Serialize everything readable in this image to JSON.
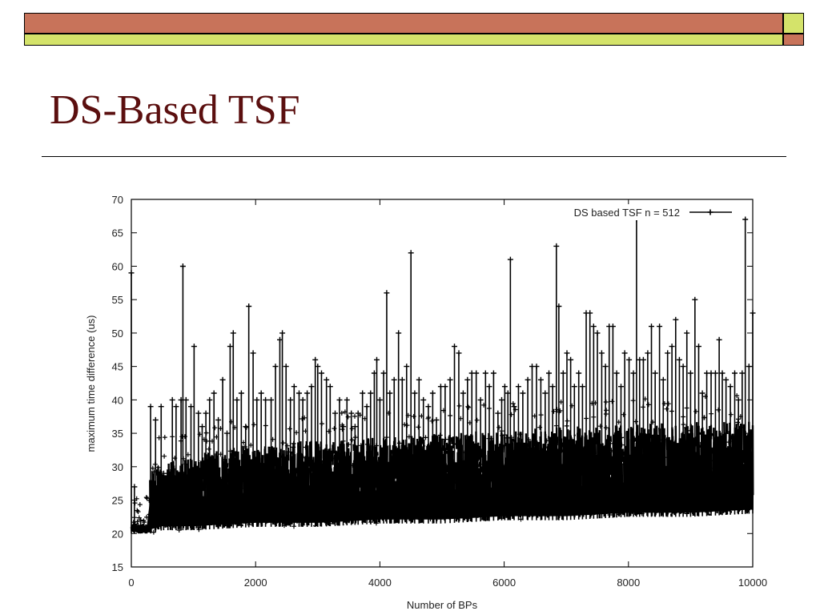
{
  "slide": {
    "title": "DS-Based TSF",
    "colors": {
      "bar_orange": "#c8735a",
      "bar_green": "#d4e36a",
      "title": "#5b0f0f"
    }
  },
  "chart_data": {
    "type": "line",
    "title": "",
    "xlabel": "Number of BPs",
    "ylabel": "maximum time difference (us)",
    "xlim": [
      0,
      10000
    ],
    "ylim": [
      15,
      70
    ],
    "xticks": [
      0,
      2000,
      4000,
      6000,
      8000,
      10000
    ],
    "yticks": [
      15,
      20,
      25,
      30,
      35,
      40,
      45,
      50,
      55,
      60,
      65,
      70
    ],
    "grid": false,
    "legend_position": "top-right",
    "series": [
      {
        "name": "DS based TSF n = 512",
        "color": "#000000",
        "marker": "plus",
        "baseline": [
          [
            0,
            20
          ],
          [
            300,
            20
          ],
          [
            500,
            20.5
          ],
          [
            1000,
            20.5
          ],
          [
            2000,
            21
          ],
          [
            3000,
            21
          ],
          [
            4000,
            21.5
          ],
          [
            5000,
            21.5
          ],
          [
            6000,
            22
          ],
          [
            7000,
            22
          ],
          [
            8000,
            22.5
          ],
          [
            9000,
            22.5
          ],
          [
            10000,
            23
          ]
        ],
        "peaks": [
          [
            0,
            59
          ],
          [
            50,
            27
          ],
          [
            150,
            22
          ],
          [
            310,
            39
          ],
          [
            390,
            37
          ],
          [
            480,
            39
          ],
          [
            520,
            29
          ],
          [
            590,
            29
          ],
          [
            660,
            40
          ],
          [
            720,
            39
          ],
          [
            800,
            40
          ],
          [
            830,
            60
          ],
          [
            880,
            40
          ],
          [
            960,
            39
          ],
          [
            1010,
            48
          ],
          [
            1080,
            38
          ],
          [
            1140,
            36
          ],
          [
            1200,
            38
          ],
          [
            1260,
            40
          ],
          [
            1330,
            41
          ],
          [
            1400,
            37
          ],
          [
            1470,
            43
          ],
          [
            1540,
            35
          ],
          [
            1590,
            48
          ],
          [
            1640,
            50
          ],
          [
            1700,
            40
          ],
          [
            1770,
            41
          ],
          [
            1840,
            36
          ],
          [
            1890,
            54
          ],
          [
            1960,
            47
          ],
          [
            2020,
            40
          ],
          [
            2090,
            41
          ],
          [
            2160,
            40
          ],
          [
            2250,
            40
          ],
          [
            2320,
            45
          ],
          [
            2390,
            49
          ],
          [
            2430,
            50
          ],
          [
            2490,
            45
          ],
          [
            2560,
            40
          ],
          [
            2620,
            42
          ],
          [
            2700,
            41
          ],
          [
            2760,
            40
          ],
          [
            2830,
            41
          ],
          [
            2900,
            42
          ],
          [
            2960,
            46
          ],
          [
            3000,
            45
          ],
          [
            3060,
            44
          ],
          [
            3140,
            43
          ],
          [
            3200,
            42
          ],
          [
            3280,
            38
          ],
          [
            3350,
            40
          ],
          [
            3410,
            36
          ],
          [
            3470,
            40
          ],
          [
            3540,
            38
          ],
          [
            3600,
            36
          ],
          [
            3650,
            38
          ],
          [
            3720,
            41
          ],
          [
            3790,
            39
          ],
          [
            3850,
            41
          ],
          [
            3910,
            44
          ],
          [
            3950,
            46
          ],
          [
            4000,
            40
          ],
          [
            4060,
            44
          ],
          [
            4110,
            56
          ],
          [
            4160,
            41
          ],
          [
            4230,
            43
          ],
          [
            4300,
            50
          ],
          [
            4360,
            43
          ],
          [
            4430,
            45
          ],
          [
            4500,
            62
          ],
          [
            4560,
            41
          ],
          [
            4630,
            43
          ],
          [
            4700,
            40
          ],
          [
            4780,
            39
          ],
          [
            4850,
            41
          ],
          [
            4910,
            37
          ],
          [
            4980,
            42
          ],
          [
            5050,
            42
          ],
          [
            5130,
            43
          ],
          [
            5200,
            48
          ],
          [
            5270,
            47
          ],
          [
            5340,
            41
          ],
          [
            5410,
            43
          ],
          [
            5480,
            44
          ],
          [
            5550,
            44
          ],
          [
            5620,
            40
          ],
          [
            5700,
            44
          ],
          [
            5760,
            42
          ],
          [
            5830,
            44
          ],
          [
            5900,
            38
          ],
          [
            5960,
            40
          ],
          [
            6010,
            42
          ],
          [
            6060,
            41
          ],
          [
            6100,
            61
          ],
          [
            6160,
            39
          ],
          [
            6230,
            42
          ],
          [
            6300,
            41
          ],
          [
            6380,
            43
          ],
          [
            6450,
            45
          ],
          [
            6520,
            45
          ],
          [
            6590,
            43
          ],
          [
            6660,
            41
          ],
          [
            6720,
            44
          ],
          [
            6780,
            42
          ],
          [
            6840,
            63
          ],
          [
            6880,
            54
          ],
          [
            6950,
            44
          ],
          [
            7010,
            47
          ],
          [
            7070,
            46
          ],
          [
            7130,
            42
          ],
          [
            7200,
            44
          ],
          [
            7260,
            42
          ],
          [
            7320,
            53
          ],
          [
            7380,
            53
          ],
          [
            7440,
            51
          ],
          [
            7500,
            50
          ],
          [
            7570,
            47
          ],
          [
            7630,
            45
          ],
          [
            7690,
            51
          ],
          [
            7750,
            51
          ],
          [
            7810,
            44
          ],
          [
            7880,
            42
          ],
          [
            7940,
            47
          ],
          [
            8010,
            46
          ],
          [
            8080,
            44
          ],
          [
            8130,
            67
          ],
          [
            8180,
            46
          ],
          [
            8240,
            46
          ],
          [
            8310,
            47
          ],
          [
            8370,
            51
          ],
          [
            8430,
            44
          ],
          [
            8500,
            51
          ],
          [
            8560,
            43
          ],
          [
            8630,
            47
          ],
          [
            8700,
            48
          ],
          [
            8760,
            52
          ],
          [
            8820,
            46
          ],
          [
            8880,
            45
          ],
          [
            8940,
            50
          ],
          [
            9000,
            44
          ],
          [
            9070,
            55
          ],
          [
            9130,
            48
          ],
          [
            9190,
            41
          ],
          [
            9260,
            44
          ],
          [
            9330,
            44
          ],
          [
            9400,
            44
          ],
          [
            9460,
            49
          ],
          [
            9510,
            44
          ],
          [
            9570,
            43
          ],
          [
            9640,
            42
          ],
          [
            9710,
            44
          ],
          [
            9770,
            40
          ],
          [
            9830,
            44
          ],
          [
            9880,
            67
          ],
          [
            9940,
            45
          ],
          [
            10000,
            53
          ]
        ]
      }
    ]
  }
}
